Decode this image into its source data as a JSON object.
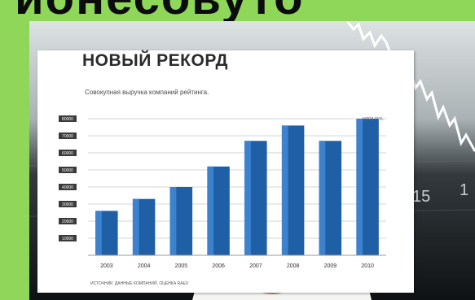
{
  "header": {
    "fragment": "ионесовуто"
  },
  "background": {
    "ticks": [
      "15",
      "1"
    ]
  },
  "card": {
    "title": "НОВЫЙ РЕКОРД",
    "subtitle": "Совокупная выручка компаний рейтинга.",
    "source": "ИСТОЧНИК: ДАННЫЕ КОМПАНИЙ, ОЦЕНКА RAEX"
  },
  "chart_data": {
    "type": "bar",
    "title": "НОВЫЙ РЕКОРД",
    "subtitle": "Совокупная выручка компаний рейтинга.",
    "unit_label": "МЛРД РУБ.",
    "categories": [
      "2003",
      "2004",
      "2005",
      "2006",
      "2007",
      "2008",
      "2009",
      "2010"
    ],
    "values": [
      26000,
      33000,
      40000,
      52000,
      67000,
      76000,
      67000,
      80000
    ],
    "yticks": [
      "10000",
      "20000",
      "30000",
      "40000",
      "50000",
      "60000",
      "70000",
      "80000"
    ],
    "ylim": [
      0,
      80000
    ],
    "grid": true,
    "bar_color": "#1f5fa6"
  }
}
